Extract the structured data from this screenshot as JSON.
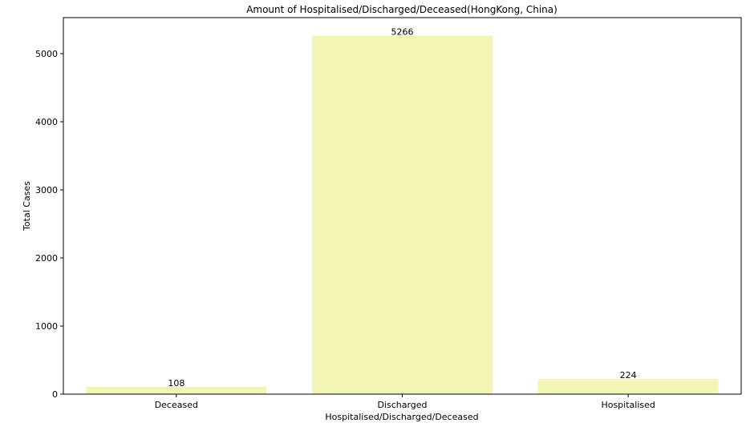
{
  "chart_data": {
    "type": "bar",
    "title": "Amount of Hospitalised/Discharged/Deceased(HongKong, China)",
    "xlabel": "Hospitalised/Discharged/Deceased",
    "ylabel": "Total Cases",
    "categories": [
      "Deceased",
      "Discharged",
      "Hospitalised"
    ],
    "values": [
      108,
      5266,
      224
    ],
    "data_labels": [
      "108",
      "5266",
      "224"
    ],
    "ylim": [
      0,
      5529
    ],
    "yticks": [
      0,
      1000,
      2000,
      3000,
      4000,
      5000
    ],
    "ytick_labels": [
      "0",
      "1000",
      "2000",
      "3000",
      "4000",
      "5000"
    ],
    "bar_color": "#f3f5b5",
    "grid": false,
    "legend": "none"
  }
}
